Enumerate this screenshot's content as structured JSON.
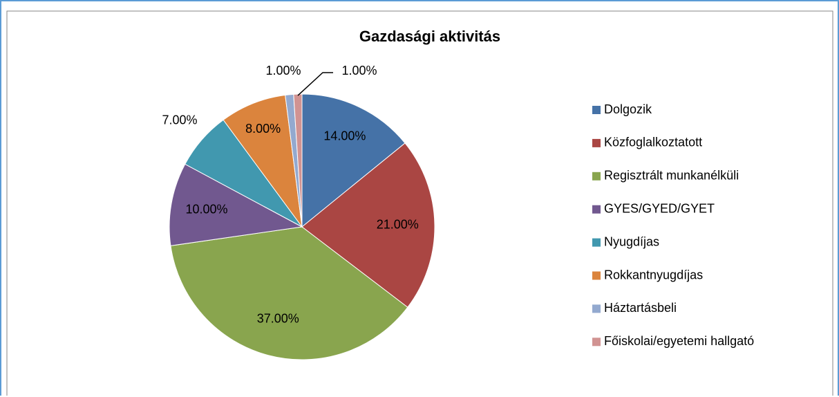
{
  "chart_data": {
    "type": "pie",
    "title": "Gazdasági aktivitás",
    "categories": [
      "Dolgozik",
      "Közfoglalkoztatott",
      "Regisztrált munkanélküli",
      "GYES/GYED/GYET",
      "Nyugdíjas",
      "Rokkantnyugdíjas",
      "Háztartásbeli",
      "Főiskolai/egyetemi hallgató"
    ],
    "values": [
      14,
      21,
      37,
      10,
      7,
      8,
      1,
      1
    ],
    "value_labels": [
      "14.00%",
      "21.00%",
      "37.00%",
      "10.00%",
      "7.00%",
      "8.00%",
      "1.00%",
      "1.00%"
    ],
    "colors": [
      "#4572a7",
      "#aa4643",
      "#89a54e",
      "#71588f",
      "#4198af",
      "#db843d",
      "#93a9cf",
      "#d19392"
    ],
    "legend": "right"
  }
}
